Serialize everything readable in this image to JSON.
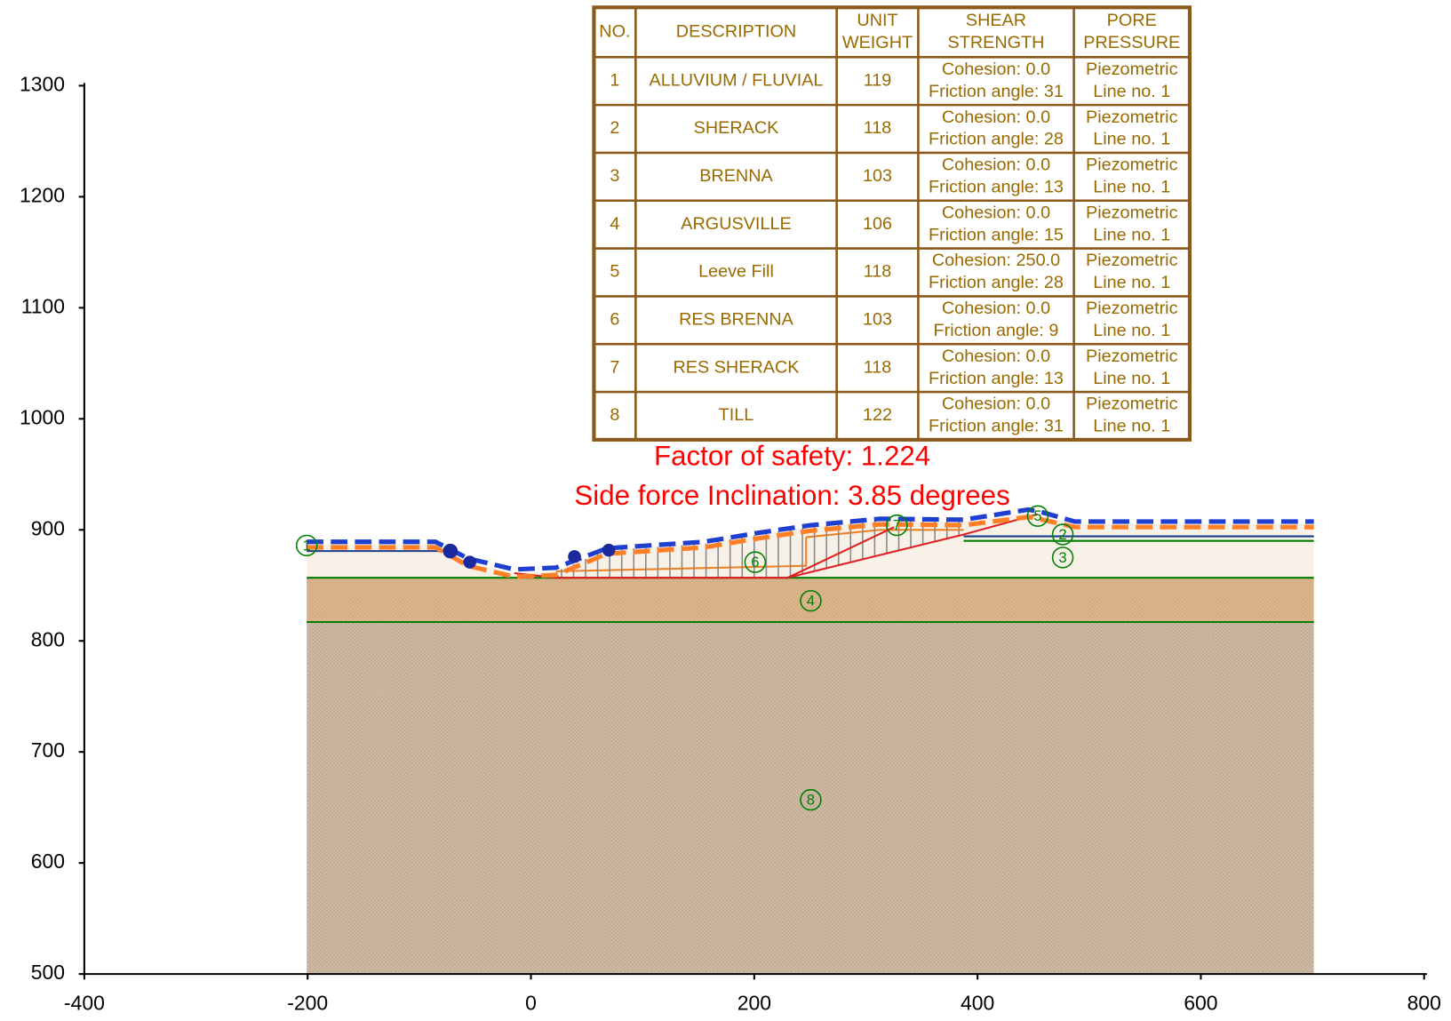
{
  "axes": {
    "xlim": [
      -400,
      800
    ],
    "ylim": [
      500,
      1300
    ],
    "xticks": [
      -400,
      -200,
      0,
      200,
      400,
      600,
      800
    ],
    "yticks": [
      500,
      600,
      700,
      800,
      900,
      1000,
      1100,
      1200,
      1300
    ]
  },
  "table": {
    "header": [
      "NO.",
      "DESCRIPTION",
      [
        "UNIT",
        "WEIGHT"
      ],
      [
        "SHEAR",
        "STRENGTH"
      ],
      [
        "PORE",
        "PRESSURE"
      ]
    ],
    "rows": [
      [
        1,
        "ALLUVIUM / FLUVIAL",
        119,
        [
          "Cohesion: 0.0",
          "Friction angle: 31"
        ],
        [
          "Piezometric",
          "Line no. 1"
        ]
      ],
      [
        2,
        "SHERACK",
        118,
        [
          "Cohesion: 0.0",
          "Friction angle: 28"
        ],
        [
          "Piezometric",
          "Line no. 1"
        ]
      ],
      [
        3,
        "BRENNA",
        103,
        [
          "Cohesion: 0.0",
          "Friction angle: 13"
        ],
        [
          "Piezometric",
          "Line no. 1"
        ]
      ],
      [
        4,
        "ARGUSVILLE",
        106,
        [
          "Cohesion: 0.0",
          "Friction angle: 15"
        ],
        [
          "Piezometric",
          "Line no. 1"
        ]
      ],
      [
        5,
        "Leeve Fill",
        118,
        [
          "Cohesion: 250.0",
          "Friction angle: 28"
        ],
        [
          "Piezometric",
          "Line no. 1"
        ]
      ],
      [
        6,
        "RES BRENNA",
        103,
        [
          "Cohesion: 0.0",
          "Friction angle: 9"
        ],
        [
          "Piezometric",
          "Line no. 1"
        ]
      ],
      [
        7,
        "RES SHERACK",
        118,
        [
          "Cohesion: 0.0",
          "Friction angle: 13"
        ],
        [
          "Piezometric",
          "Line no. 1"
        ]
      ],
      [
        8,
        "TILL",
        122,
        [
          "Cohesion: 0.0",
          "Friction angle: 31"
        ],
        [
          "Piezometric",
          "Line no. 1"
        ]
      ]
    ]
  },
  "annotations": [
    "Factor of safety: 1.224",
    "Side force Inclination: 3.85 degrees"
  ],
  "region_labels": [
    "1",
    "2",
    "3",
    "4",
    "5",
    "6",
    "7",
    "8"
  ]
}
